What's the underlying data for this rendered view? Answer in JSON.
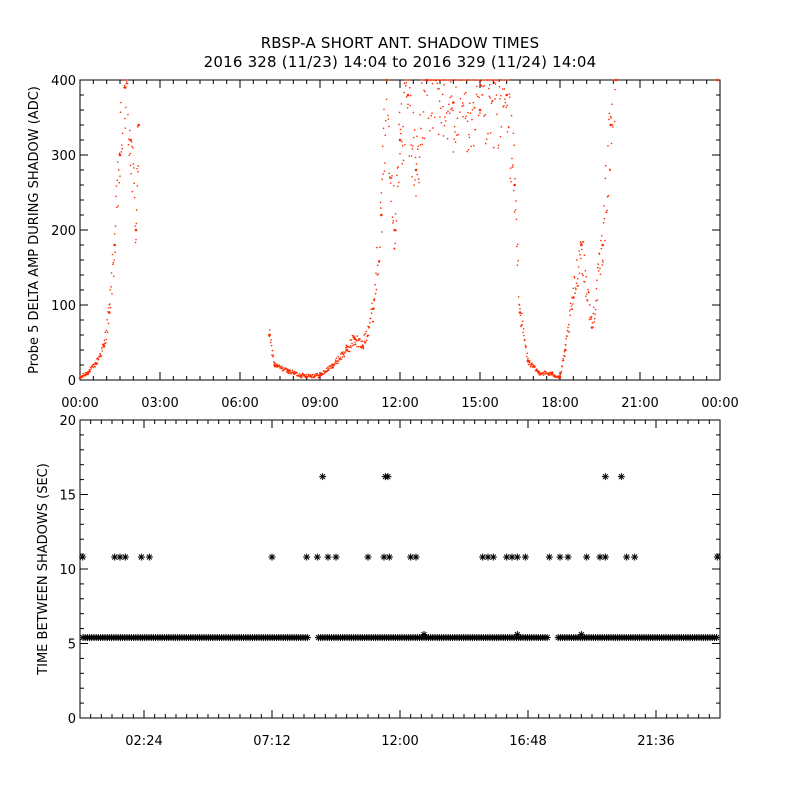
{
  "title_line1": "RBSP-A SHORT ANT. SHADOW TIMES",
  "title_line2": "2016 328 (11/23) 14:04 to 2016 329 (11/24) 14:04",
  "colors": {
    "top_points": "#ff2a00",
    "bottom_points": "#000000",
    "axes": "#000000"
  },
  "chart_data": [
    {
      "type": "scatter",
      "title": "",
      "ylabel": "Probe 5 DELTA AMP DURING SHADOW (ADC)",
      "xlabel": "",
      "xlim": [
        0,
        24
      ],
      "ylim": [
        0,
        400
      ],
      "x_tick_labels": [
        "00:00",
        "03:00",
        "06:00",
        "09:00",
        "12:00",
        "15:00",
        "18:00",
        "21:00",
        "00:00"
      ],
      "x_tick_values": [
        0,
        3,
        6,
        9,
        12,
        15,
        18,
        21,
        24
      ],
      "y_tick_values": [
        0,
        100,
        200,
        300,
        400
      ],
      "grid": false,
      "marker": "dot",
      "color": "#ff2a00",
      "series": [
        {
          "values": [
            [
              0.0,
              3
            ],
            [
              0.3,
              10
            ],
            [
              0.6,
              22
            ],
            [
              0.9,
              45
            ],
            [
              1.1,
              90
            ],
            [
              1.3,
              180
            ],
            [
              1.5,
              300
            ],
            [
              1.7,
              390
            ],
            [
              1.9,
              320
            ],
            [
              2.1,
              200
            ],
            [
              2.2,
              340
            ],
            [
              7.1,
              60
            ],
            [
              7.3,
              20
            ],
            [
              7.8,
              12
            ],
            [
              8.3,
              6
            ],
            [
              9.0,
              6
            ],
            [
              9.5,
              20
            ],
            [
              10.0,
              40
            ],
            [
              10.3,
              55
            ],
            [
              10.6,
              45
            ],
            [
              11.0,
              95
            ],
            [
              11.3,
              220
            ],
            [
              11.5,
              400
            ],
            [
              11.8,
              200
            ],
            [
              12.0,
              320
            ],
            [
              12.3,
              380
            ],
            [
              12.6,
              280
            ],
            [
              13.0,
              400
            ],
            [
              14.0,
              370
            ],
            [
              15.0,
              360
            ],
            [
              16.0,
              380
            ],
            [
              16.3,
              260
            ],
            [
              16.5,
              90
            ],
            [
              16.8,
              25
            ],
            [
              17.2,
              10
            ],
            [
              17.7,
              8
            ],
            [
              18.0,
              4
            ],
            [
              18.2,
              40
            ],
            [
              18.5,
              110
            ],
            [
              18.8,
              180
            ],
            [
              19.2,
              70
            ],
            [
              19.6,
              180
            ],
            [
              19.9,
              340
            ],
            [
              20.1,
              400
            ],
            [
              23.9,
              400
            ]
          ]
        }
      ]
    },
    {
      "type": "scatter",
      "title": "",
      "ylabel": "TIME BETWEEN SHADOWS (SEC)",
      "xlabel": "",
      "xlim": [
        0,
        24
      ],
      "ylim": [
        0,
        20
      ],
      "x_tick_labels": [
        "02:24",
        "07:12",
        "12:00",
        "16:48",
        "21:36"
      ],
      "x_tick_values": [
        2.4,
        7.2,
        12.0,
        16.8,
        21.6
      ],
      "y_tick_values": [
        0,
        5,
        10,
        15,
        20
      ],
      "grid": false,
      "marker": "asterisk",
      "color": "#000000",
      "baseline_value": 5.4,
      "baseline_gaps": [
        [
          8.55,
          8.9
        ],
        [
          17.55,
          17.85
        ]
      ],
      "series": [
        {
          "values": [
            [
              0.1,
              10.8
            ],
            [
              1.3,
              10.8
            ],
            [
              1.5,
              10.8
            ],
            [
              1.7,
              10.8
            ],
            [
              2.3,
              10.8
            ],
            [
              2.6,
              10.8
            ],
            [
              7.2,
              10.8
            ],
            [
              8.5,
              10.8
            ],
            [
              8.9,
              10.8
            ],
            [
              9.3,
              10.8
            ],
            [
              9.6,
              10.8
            ],
            [
              10.8,
              10.8
            ],
            [
              11.4,
              10.8
            ],
            [
              11.6,
              10.8
            ],
            [
              12.4,
              10.8
            ],
            [
              12.6,
              10.8
            ],
            [
              15.1,
              10.8
            ],
            [
              15.3,
              10.8
            ],
            [
              15.5,
              10.8
            ],
            [
              16.0,
              10.8
            ],
            [
              16.2,
              10.8
            ],
            [
              16.4,
              10.8
            ],
            [
              16.7,
              10.8
            ],
            [
              17.6,
              10.8
            ],
            [
              18.0,
              10.8
            ],
            [
              18.3,
              10.8
            ],
            [
              19.0,
              10.8
            ],
            [
              19.5,
              10.8
            ],
            [
              19.7,
              10.8
            ],
            [
              20.5,
              10.8
            ],
            [
              20.8,
              10.8
            ],
            [
              23.9,
              10.8
            ],
            [
              9.1,
              16.2
            ],
            [
              11.45,
              16.2
            ],
            [
              11.55,
              16.2
            ],
            [
              19.7,
              16.2
            ],
            [
              20.3,
              16.2
            ],
            [
              12.9,
              5.6
            ],
            [
              16.4,
              5.6
            ],
            [
              18.8,
              5.6
            ]
          ]
        }
      ]
    }
  ]
}
